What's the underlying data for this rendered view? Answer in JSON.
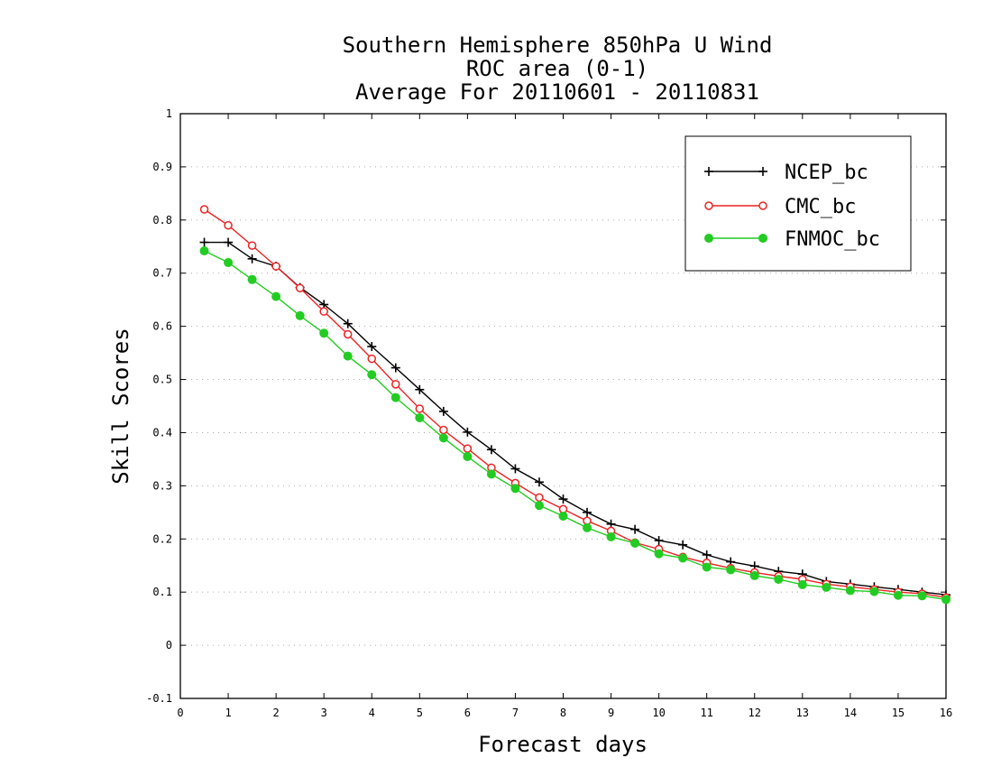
{
  "chart_data": {
    "type": "line",
    "title_lines": [
      "Southern Hemisphere 850hPa U Wind",
      "ROC area (0-1)",
      "Average For 20110601 - 20110831"
    ],
    "xlabel": "Forecast days",
    "ylabel": "Skill Scores",
    "xlim": [
      0,
      16
    ],
    "ylim": [
      -0.1,
      1
    ],
    "x_ticks": [
      "0",
      "1",
      "2",
      "3",
      "4",
      "5",
      "6",
      "7",
      "8",
      "9",
      "10",
      "11",
      "12",
      "13",
      "14",
      "15",
      "16"
    ],
    "y_ticks": [
      "-0.1",
      "0",
      "0.1",
      "0.2",
      "0.3",
      "0.4",
      "0.5",
      "0.6",
      "0.7",
      "0.8",
      "0.9",
      "1"
    ],
    "grid": true,
    "legend_position": "top-right",
    "x": [
      0.5,
      1,
      1.5,
      2,
      2.5,
      3,
      3.5,
      4,
      4.5,
      5,
      5.5,
      6,
      6.5,
      7,
      7.5,
      8,
      8.5,
      9,
      9.5,
      10,
      10.5,
      11,
      11.5,
      12,
      12.5,
      13,
      13.5,
      14,
      14.5,
      15,
      15.5,
      16
    ],
    "series": [
      {
        "name": "NCEP_bc",
        "color": "#000000",
        "marker": "plus",
        "values": [
          0.758,
          0.758,
          0.727,
          0.713,
          0.673,
          0.641,
          0.605,
          0.562,
          0.522,
          0.481,
          0.44,
          0.401,
          0.368,
          0.332,
          0.307,
          0.275,
          0.25,
          0.228,
          0.218,
          0.197,
          0.189,
          0.17,
          0.157,
          0.149,
          0.139,
          0.134,
          0.12,
          0.115,
          0.11,
          0.105,
          0.1,
          0.095
        ]
      },
      {
        "name": "CMC_bc",
        "color": "#ee2222",
        "marker": "open-circle",
        "values": [
          0.82,
          0.79,
          0.752,
          0.713,
          0.672,
          0.628,
          0.585,
          0.539,
          0.491,
          0.445,
          0.405,
          0.37,
          0.334,
          0.305,
          0.278,
          0.256,
          0.234,
          0.215,
          0.193,
          0.181,
          0.166,
          0.155,
          0.145,
          0.137,
          0.13,
          0.124,
          0.115,
          0.11,
          0.105,
          0.1,
          0.097,
          0.09
        ]
      },
      {
        "name": "FNMOC_bc",
        "color": "#22cc22",
        "marker": "filled-circle",
        "values": [
          0.742,
          0.72,
          0.688,
          0.656,
          0.62,
          0.587,
          0.544,
          0.509,
          0.466,
          0.428,
          0.39,
          0.355,
          0.322,
          0.295,
          0.263,
          0.243,
          0.221,
          0.204,
          0.192,
          0.172,
          0.164,
          0.147,
          0.142,
          0.131,
          0.124,
          0.114,
          0.109,
          0.103,
          0.101,
          0.094,
          0.093,
          0.086
        ]
      }
    ]
  }
}
